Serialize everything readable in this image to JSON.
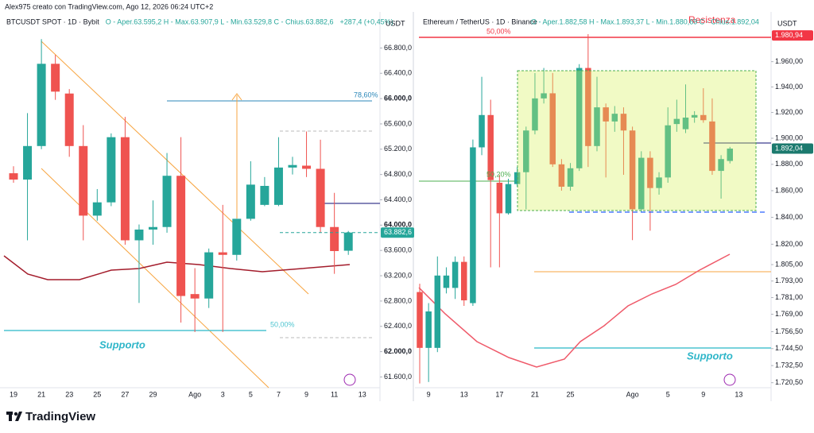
{
  "watermark": "Alex975 creato con TradingView.com, Ago 12, 2026 06:24 UTC+2",
  "brand": "TradingView",
  "chart_data": [
    {
      "type": "candlestick",
      "title": "BTCUSDT SPOT · 1D · Bybit",
      "legend": "O - Aper.63.595,2  H - Max.63.907,9  L - Min.63.529,8  C - Chius.63.882,6",
      "change": "+287,4 (+0,45%)",
      "y_axis_label": "USDT",
      "up_color": "#26a69a",
      "down_color": "#ef5350",
      "categories": [
        "19",
        null,
        "21",
        null,
        "23",
        null,
        "25",
        null,
        "27",
        null,
        "29",
        null,
        null,
        "Ago",
        null,
        "3",
        null,
        "5",
        null,
        "7",
        null,
        "9",
        null,
        "11",
        null,
        "13"
      ],
      "open": [
        64820,
        64720,
        65250,
        66550,
        66080,
        65250,
        64150,
        64360,
        65390,
        63760,
        63930,
        63970,
        64780,
        62910,
        62840,
        63570,
        63530,
        64100,
        64320,
        64320,
        64910,
        64940,
        64890,
        63970,
        63595.2,
        null
      ],
      "high": [
        64930,
        65770,
        66940,
        66690,
        66150,
        65580,
        64570,
        65450,
        65710,
        64010,
        64390,
        65140,
        65390,
        63320,
        63630,
        64320,
        64100,
        65010,
        64760,
        65390,
        65080,
        65480,
        65350,
        64510,
        63907.9,
        null
      ],
      "low": [
        64670,
        63760,
        65200,
        65980,
        65080,
        63760,
        64070,
        64300,
        63690,
        62770,
        63690,
        63880,
        62460,
        62310,
        62690,
        62310,
        63440,
        64070,
        64300,
        64300,
        64800,
        64760,
        63880,
        63230,
        63529.8,
        null
      ],
      "close": [
        64720,
        65250,
        66550,
        66110,
        65250,
        64150,
        64360,
        65390,
        63760,
        63930,
        63970,
        64780,
        62880,
        62840,
        63570,
        63530,
        64100,
        64640,
        64620,
        64910,
        64950,
        64890,
        63970,
        63590,
        63882.6,
        null
      ],
      "ylim": [
        61430,
        67370
      ],
      "yticks": [
        {
          "value": 61600,
          "label": "61.600,0"
        },
        {
          "value": 62000,
          "label": "62.000,0"
        },
        {
          "value": 62400,
          "label": "62.400,0"
        },
        {
          "value": 62800,
          "label": "62.800,0"
        },
        {
          "value": 63200,
          "label": "63.200,0"
        },
        {
          "value": 63600,
          "label": "63.600,0"
        },
        {
          "value": 64000,
          "label": "64.000,0"
        },
        {
          "value": 64400,
          "label": "64.400,0"
        },
        {
          "value": 64800,
          "label": "64.800,0"
        },
        {
          "value": 65200,
          "label": "65.200,0"
        },
        {
          "value": 65600,
          "label": "65.600,0"
        },
        {
          "value": 66000,
          "label": "66.000,0"
        },
        {
          "value": 66400,
          "label": "66.400,0"
        },
        {
          "value": 66800,
          "label": "66.800,0"
        }
      ],
      "price_labels": [
        {
          "value": 63882.6,
          "label": "63.882,6",
          "color": "#26a69a"
        }
      ],
      "annotations": [
        "78,60%",
        "50,00%",
        "Supporto"
      ]
    },
    {
      "type": "candlestick",
      "title": "Ethereum / TetherUS · 1D · Binance",
      "legend": "O - Aper.1.882,58  H - Max.1.893,37  L - Min.1.880,69  C - Chius.1.892,04",
      "y_axis_label": "USDT",
      "up_color": "#26a69a",
      "down_color": "#ef5350",
      "log_scale": true,
      "categories": [
        null,
        "9",
        null,
        null,
        null,
        "13",
        null,
        null,
        null,
        "17",
        null,
        null,
        null,
        "21",
        null,
        null,
        null,
        "25",
        null,
        null,
        null,
        null,
        null,
        null,
        "Ago",
        null,
        null,
        null,
        "5",
        null,
        null,
        null,
        "9",
        null,
        null,
        null,
        "13"
      ],
      "open": [
        1785,
        1745,
        1745,
        1788,
        1788,
        1807,
        1777,
        1893,
        1918,
        1866,
        1843,
        1865,
        1874,
        1906,
        1931,
        1935,
        1880,
        1863,
        1877,
        1955,
        1894,
        1924,
        1913,
        1919,
        1906,
        1846,
        1885,
        1862,
        1870,
        1911,
        1907,
        1916,
        1918,
        1913,
        1875,
        1882.58,
        null
      ],
      "high": [
        1791,
        1777,
        1811,
        1803,
        1811,
        1811,
        1899,
        1948,
        1930,
        1872,
        1869,
        1878,
        1909,
        1951,
        1955,
        1951,
        1884,
        1881,
        1958,
        1982,
        1948,
        1927,
        1925,
        1924,
        1909,
        1890,
        1890,
        1874,
        1924,
        1930,
        1942,
        1921,
        1939,
        1931,
        1887,
        1893.37,
        null
      ],
      "low": [
        1720,
        1721,
        1742,
        1784,
        1780,
        1775,
        1775,
        1887,
        1803,
        1803,
        1842,
        1863,
        1846,
        1903,
        1927,
        1878,
        1860,
        1860,
        1875,
        1878,
        1890,
        1870,
        1905,
        1872,
        1823,
        1844,
        1830,
        1857,
        1866,
        1905,
        1904,
        1912,
        1912,
        1872,
        1854,
        1880.69,
        null
      ],
      "close": [
        1745,
        1771,
        1797,
        1797,
        1807,
        1779,
        1893,
        1918,
        1868,
        1843,
        1865,
        1874,
        1906,
        1931,
        1935,
        1880,
        1863,
        1877,
        1955,
        1894,
        1924,
        1913,
        1919,
        1906,
        1846,
        1885,
        1862,
        1870,
        1910,
        1915,
        1916,
        1918,
        1914,
        1875,
        1884,
        1892.04,
        null
      ],
      "ylim": [
        1717,
        2000
      ],
      "yticks": [
        {
          "value": 1720.5,
          "label": "1.720,50"
        },
        {
          "value": 1732.5,
          "label": "1.732,50"
        },
        {
          "value": 1744.5,
          "label": "1.744,50"
        },
        {
          "value": 1756.5,
          "label": "1.756,50"
        },
        {
          "value": 1769,
          "label": "1.769,00"
        },
        {
          "value": 1781,
          "label": "1.781,00"
        },
        {
          "value": 1793,
          "label": "1.793,00"
        },
        {
          "value": 1805,
          "label": "1.805,00"
        },
        {
          "value": 1820,
          "label": "1.820,00"
        },
        {
          "value": 1840,
          "label": "1.840,00"
        },
        {
          "value": 1860,
          "label": "1.860,00"
        },
        {
          "value": 1880,
          "label": "1.880,00"
        },
        {
          "value": 1900,
          "label": "1.900,00"
        },
        {
          "value": 1920,
          "label": "1.920,00"
        },
        {
          "value": 1940,
          "label": "1.940,00"
        },
        {
          "value": 1960,
          "label": "1.960,00"
        }
      ],
      "price_labels": [
        {
          "value": 1980.94,
          "label": "1.980,94",
          "color": "#f23645"
        },
        {
          "value": 1892.04,
          "label": "1.892,04",
          "color": "#1b7a6e"
        }
      ],
      "annotations": [
        "Resistenza",
        "50,00%",
        "50,20%",
        "Supporto"
      ]
    }
  ]
}
